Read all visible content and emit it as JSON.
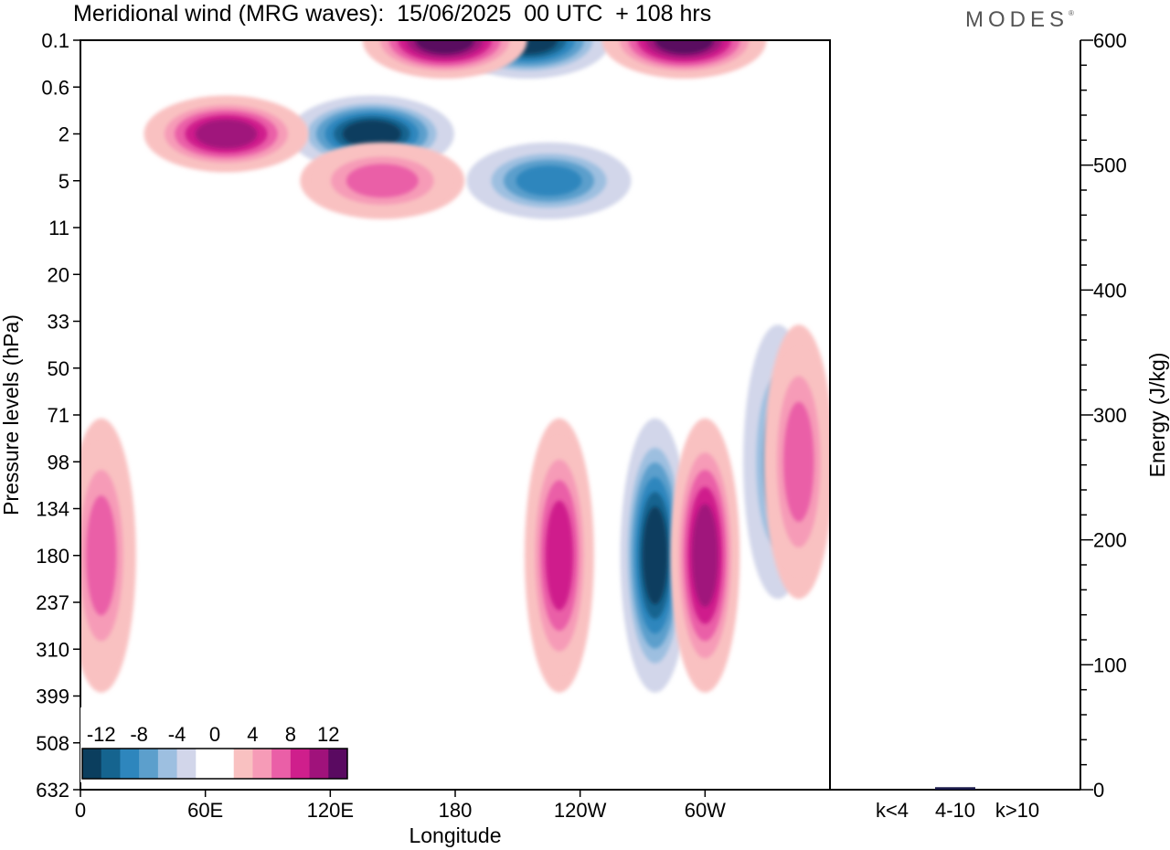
{
  "title": "Meridional wind (MRG waves):  15/06/2025  00 UTC  + 108 hrs",
  "brand": "MODES",
  "brand_mark": "®",
  "colors": {
    "neg": [
      "#0b3e5e",
      "#15648f",
      "#2e86bd",
      "#5c9fcc",
      "#9dbfe0",
      "#d2d6ea"
    ],
    "pos": [
      "#f9c1c1",
      "#f69bb7",
      "#ea5fa7",
      "#cf1f8c",
      "#a0127b",
      "#5a0a61"
    ],
    "zero": "#ffffff"
  },
  "chart_data": [
    {
      "type": "heatmap",
      "variable": "Meridional wind (MRG waves)",
      "xlabel": "Longitude",
      "ylabel": "Pressure levels (hPa)",
      "x_ticks": [
        "0",
        "60E",
        "120E",
        "180",
        "120W",
        "60W"
      ],
      "x_tick_degrees": [
        0,
        60,
        120,
        180,
        240,
        300
      ],
      "x_range": [
        0,
        360
      ],
      "y_ticks": [
        "0.1",
        "0.6",
        "2",
        "5",
        "11",
        "20",
        "33",
        "50",
        "71",
        "98",
        "134",
        "180",
        "237",
        "310",
        "399",
        "508",
        "632"
      ],
      "colorbar": {
        "labels": [
          "-12",
          "-8",
          "-4",
          "0",
          "4",
          "8",
          "12"
        ],
        "levels": [
          -14,
          -12,
          -10,
          -8,
          -6,
          -4,
          -2,
          2,
          4,
          6,
          8,
          10,
          12,
          14
        ]
      },
      "features": [
        {
          "lon": 140,
          "level": "2",
          "value": -14
        },
        {
          "lon": 215,
          "level": "0.1",
          "value": -14
        },
        {
          "lon": 276,
          "level": "180",
          "value": -14
        },
        {
          "lon": 290,
          "level": "0.1",
          "value": 14
        },
        {
          "lon": 175,
          "level": "0.1",
          "value": 14
        },
        {
          "lon": 300,
          "level": "180",
          "value": 12
        },
        {
          "lon": 70,
          "level": "2",
          "value": 12
        },
        {
          "lon": 230,
          "level": "180",
          "value": 10
        },
        {
          "lon": 10,
          "level": "180",
          "value": 8
        },
        {
          "lon": 335,
          "level": "98",
          "value": -8
        },
        {
          "lon": 345,
          "level": "98",
          "value": 8
        },
        {
          "lon": 225,
          "level": "5",
          "value": -10
        },
        {
          "lon": 145,
          "level": "5",
          "value": 8
        }
      ]
    },
    {
      "type": "bar",
      "ylabel": "Energy (J/kg)",
      "categories": [
        "k<4",
        "4-10",
        "k>10"
      ],
      "values": [
        0,
        2,
        0
      ],
      "ylim": [
        0,
        600
      ],
      "y_ticks": [
        "0",
        "100",
        "200",
        "300",
        "400",
        "500",
        "600"
      ]
    }
  ]
}
